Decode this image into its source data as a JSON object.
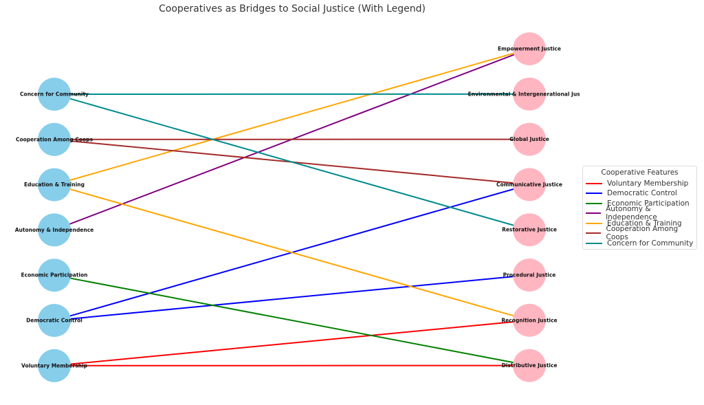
{
  "title": "Cooperatives as Bridges to Social Justice (With Legend)",
  "left_nodes": [
    "Concern for Community",
    "Cooperation Among Coops",
    "Education & Training",
    "Autonomy & Independence",
    "Economic Participation",
    "Democratic Control",
    "Voluntary Membership"
  ],
  "right_nodes": [
    "Empowerment Justice",
    "Environmental & Intergenerational Justice",
    "Global Justice",
    "Communicative Justice",
    "Restorative Justice",
    "Procedural Justice",
    "Recognition Justice",
    "Distributive Justice"
  ],
  "node_colors": {
    "left": "#87ceeb",
    "right": "#ffb6c1"
  },
  "edges": [
    {
      "from": "Voluntary Membership",
      "to": "Distributive Justice",
      "color": "#ff0000"
    },
    {
      "from": "Voluntary Membership",
      "to": "Recognition Justice",
      "color": "#ff0000"
    },
    {
      "from": "Democratic Control",
      "to": "Procedural Justice",
      "color": "#0000ff"
    },
    {
      "from": "Democratic Control",
      "to": "Communicative Justice",
      "color": "#0000ff"
    },
    {
      "from": "Economic Participation",
      "to": "Distributive Justice",
      "color": "#008000"
    },
    {
      "from": "Autonomy & Independence",
      "to": "Empowerment Justice",
      "color": "#800080"
    },
    {
      "from": "Education & Training",
      "to": "Empowerment Justice",
      "color": "#ffa500"
    },
    {
      "from": "Education & Training",
      "to": "Recognition Justice",
      "color": "#ffa500"
    },
    {
      "from": "Cooperation Among Coops",
      "to": "Global Justice",
      "color": "#a52a2a"
    },
    {
      "from": "Cooperation Among Coops",
      "to": "Communicative Justice",
      "color": "#a52a2a"
    },
    {
      "from": "Concern for Community",
      "to": "Environmental & Intergenerational Justice",
      "color": "#008b8b"
    },
    {
      "from": "Concern for Community",
      "to": "Restorative Justice",
      "color": "#008b8b"
    }
  ],
  "legend": {
    "title": "Cooperative Features",
    "items": [
      {
        "label": "Voluntary Membership",
        "color": "#ff0000"
      },
      {
        "label": "Democratic Control",
        "color": "#0000ff"
      },
      {
        "label": "Economic Participation",
        "color": "#008000"
      },
      {
        "label": "Autonomy & Independence",
        "color": "#800080"
      },
      {
        "label": "Education & Training",
        "color": "#ffa500"
      },
      {
        "label": "Cooperation Among Coops",
        "color": "#a52a2a"
      },
      {
        "label": "Concern for Community",
        "color": "#008b8b"
      }
    ]
  }
}
